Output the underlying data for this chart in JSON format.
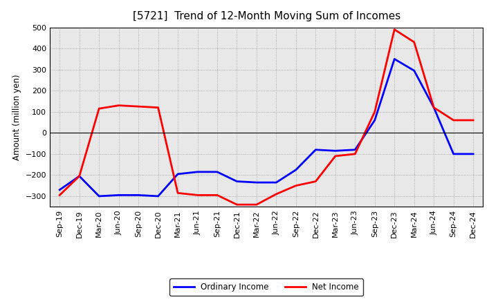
{
  "title": "[5721]  Trend of 12-Month Moving Sum of Incomes",
  "ylabel": "Amount (million yen)",
  "x_labels": [
    "Sep-19",
    "Dec-19",
    "Mar-20",
    "Jun-20",
    "Sep-20",
    "Dec-20",
    "Mar-21",
    "Jun-21",
    "Sep-21",
    "Dec-21",
    "Mar-22",
    "Jun-22",
    "Sep-22",
    "Dec-22",
    "Mar-23",
    "Jun-23",
    "Sep-23",
    "Dec-23",
    "Mar-24",
    "Jun-24",
    "Sep-24",
    "Dec-24"
  ],
  "ordinary_income": [
    -270,
    -205,
    -300,
    -295,
    -295,
    -300,
    -195,
    -185,
    -185,
    -230,
    -235,
    -235,
    -175,
    -80,
    -85,
    -80,
    60,
    350,
    295,
    120,
    -100,
    -100
  ],
  "net_income": [
    -295,
    -205,
    115,
    130,
    125,
    120,
    -285,
    -295,
    -295,
    -340,
    -340,
    -290,
    -250,
    -230,
    -110,
    -100,
    100,
    490,
    430,
    120,
    60,
    60
  ],
  "ylim": [
    -350,
    500
  ],
  "yticks": [
    -300,
    -200,
    -100,
    0,
    100,
    200,
    300,
    400,
    500
  ],
  "ordinary_color": "#0000FF",
  "net_color": "#FF0000",
  "background_color": "#FFFFFF",
  "plot_bg_color": "#F0F0F0",
  "grid_color": "#999999",
  "line_width": 2.0,
  "title_fontsize": 11,
  "axis_fontsize": 8.5,
  "tick_fontsize": 8,
  "legend_labels": [
    "Ordinary Income",
    "Net Income"
  ]
}
